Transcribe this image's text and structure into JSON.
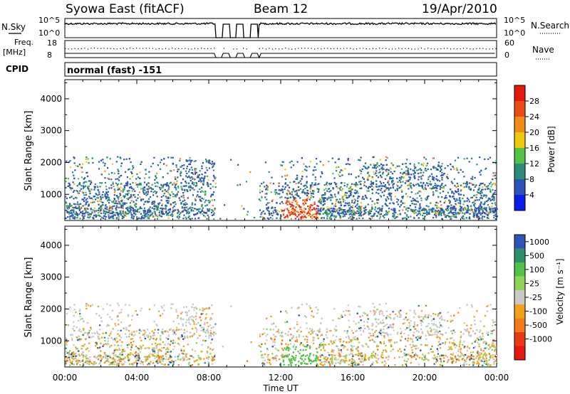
{
  "header": {
    "station": "Syowa East (fitACF)",
    "beam": "Beam 12",
    "date": "19/Apr/2010"
  },
  "panels": {
    "nsky_label": "N.Sky",
    "nsearch_label": "N.Search",
    "freq_label_1": "Freq.",
    "freq_label_2": "[MHz]",
    "nave_label": "Nave",
    "cpid_label": "CPID",
    "cpid_value": "normal (fast) -151",
    "nsky_ticks": [
      "10^5",
      "10^0"
    ],
    "nsearch_ticks": [
      "10^5",
      "10^0"
    ],
    "freq_ticks": [
      "18",
      "8"
    ],
    "nave_ticks": [
      "60",
      "0"
    ]
  },
  "chart_data": [
    {
      "type": "heatmap",
      "name": "power",
      "xlabel": "",
      "ylabel": "Slant Range [km]",
      "yticks": [
        "1000",
        "2000",
        "3000",
        "4000"
      ],
      "ylim": [
        180,
        4600
      ],
      "xlim": [
        0,
        24
      ],
      "colorbar": {
        "label": "Power [dB]",
        "ticks": [
          "4",
          "8",
          "12",
          "16",
          "20",
          "24",
          "28"
        ],
        "colors": [
          "#0b1de8",
          "#2f52b8",
          "#2e8b7a",
          "#54c048",
          "#f2c80f",
          "#f08c1a",
          "#ea4a14",
          "#e3180e"
        ]
      },
      "echo_regions": [
        {
          "t0": 0.3,
          "t1": 8.3,
          "r0": 300,
          "r1": 2200,
          "level": "low"
        },
        {
          "t0": 6.0,
          "t1": 8.3,
          "r0": 900,
          "r1": 2200,
          "level": "low"
        },
        {
          "t0": 12.2,
          "t1": 13.9,
          "r0": 350,
          "r1": 800,
          "level": "high"
        },
        {
          "t0": 16.2,
          "t1": 24,
          "r0": 300,
          "r1": 2200,
          "level": "low"
        }
      ]
    },
    {
      "type": "heatmap",
      "name": "velocity",
      "xlabel": "Time UT",
      "ylabel": "Slant Range [km]",
      "xticks": [
        "00:00",
        "04:00",
        "08:00",
        "12:00",
        "16:00",
        "20:00",
        "00:00"
      ],
      "yticks": [
        "1000",
        "2000",
        "3000",
        "4000"
      ],
      "ylim": [
        180,
        4600
      ],
      "xlim": [
        0,
        24
      ],
      "colorbar": {
        "label": "Velocity [m s⁻¹]",
        "ticks": [
          "1000",
          "500",
          "100",
          "25",
          "-25",
          "-100",
          "-500",
          "-1000"
        ],
        "colors": [
          "#2f54b8",
          "#2e9068",
          "#54c048",
          "#8fd45a",
          "#c8c8c8",
          "#f2a21a",
          "#f07a1a",
          "#ea3a14",
          "#e3180e"
        ]
      }
    }
  ]
}
